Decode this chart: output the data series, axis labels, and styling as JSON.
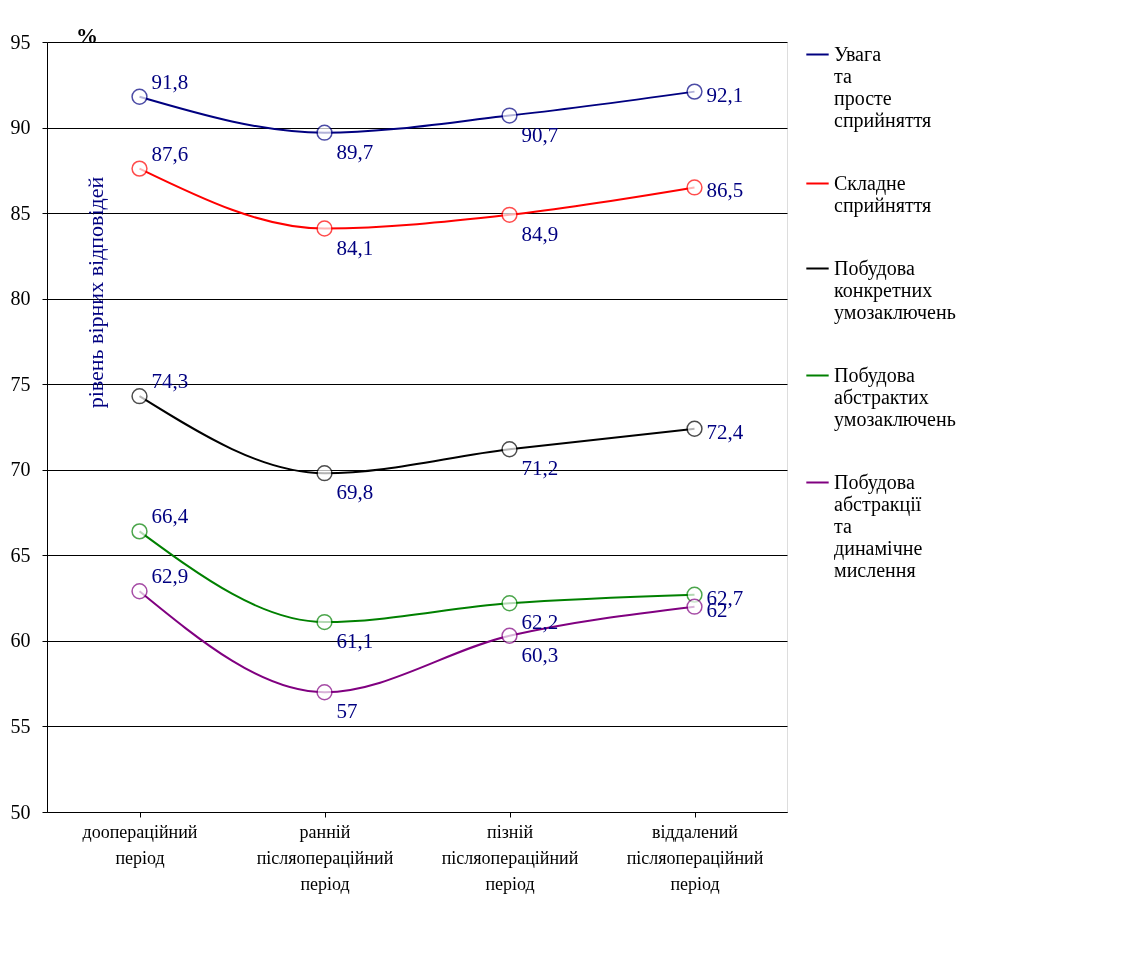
{
  "chart_data": {
    "type": "line",
    "ylabel": "рівень вірних відповідей",
    "annotations": [
      "%"
    ],
    "categories": [
      "доопераційний період",
      "ранній післяопераційний період",
      "пізній післяопераційний період",
      "віддалений післяопераційний період"
    ],
    "series": [
      {
        "name": "Увага та просте сприйняття",
        "color": "#000080",
        "values": [
          91.8,
          89.7,
          90.7,
          92.1
        ],
        "value_labels": [
          "91,8",
          "89,7",
          "90,7",
          "92,1"
        ]
      },
      {
        "name": "Складне сприйняття",
        "color": "#ff0000",
        "values": [
          87.6,
          84.1,
          84.9,
          86.5
        ],
        "value_labels": [
          "87,6",
          "84,1",
          "84,9",
          "86,5"
        ]
      },
      {
        "name": "Побудова конкретних умозаключень",
        "color": "#000000",
        "values": [
          74.3,
          69.8,
          71.2,
          72.4
        ],
        "value_labels": [
          "74,3",
          "69,8",
          "71,2",
          "72,4"
        ]
      },
      {
        "name": "Побудова абстрактих умозаключень",
        "color": "#008000",
        "values": [
          66.4,
          61.1,
          62.2,
          62.7
        ],
        "value_labels": [
          "66,4",
          "61,1",
          "62,2",
          "62,7"
        ]
      },
      {
        "name": "Побудова абстракції та динамічне мислення",
        "color": "#800080",
        "values": [
          62.9,
          57,
          60.3,
          62
        ],
        "value_labels": [
          "62,9",
          "57",
          "60,3",
          "62"
        ]
      }
    ],
    "ylim": [
      50,
      95
    ],
    "yticks": [
      50,
      55,
      60,
      65,
      70,
      75,
      80,
      85,
      90,
      95
    ],
    "grid": "y",
    "legend": "right",
    "marker": "circle",
    "line_style": "solid"
  }
}
